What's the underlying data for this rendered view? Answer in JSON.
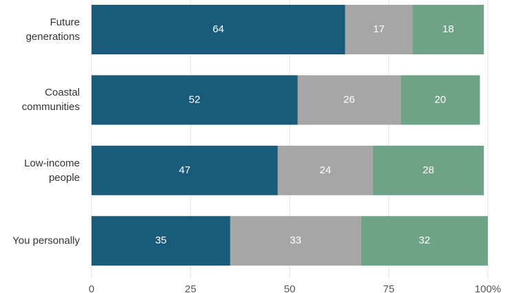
{
  "chart_data": {
    "type": "stacked-bar-horizontal",
    "categories": [
      "Future generations",
      "Coastal communities",
      "Low-income people",
      "You personally"
    ],
    "series": [
      {
        "color": "#1a5b7b",
        "values": [
          64,
          52,
          47,
          35
        ]
      },
      {
        "color": "#a6a6a6",
        "values": [
          17,
          26,
          24,
          33
        ]
      },
      {
        "color": "#6fa387",
        "values": [
          18,
          20,
          28,
          32
        ]
      }
    ],
    "xlim": [
      0,
      100
    ],
    "xticks": [
      0,
      25,
      50,
      75,
      {
        "value": 100,
        "label": "100%"
      }
    ],
    "grid": true
  }
}
